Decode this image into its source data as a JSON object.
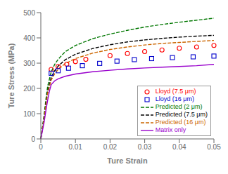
{
  "chart_data": {
    "type": "line",
    "xlabel": "Ture Strain",
    "ylabel": "Ture Stress (MPa)",
    "xlim": [
      0,
      0.05
    ],
    "ylim": [
      0,
      500
    ],
    "xticks": [
      0,
      0.01,
      0.02,
      0.03,
      0.04,
      0.05
    ],
    "yticks": [
      0,
      100,
      200,
      300,
      400,
      500
    ],
    "grid": false,
    "legend": "lower right",
    "series": [
      {
        "name": "Lloyd (7.5 μm)",
        "type": "scatter",
        "marker": "circle",
        "color": "#ff0000",
        "x": [
          0.003,
          0.005,
          0.0075,
          0.01,
          0.013,
          0.02,
          0.025,
          0.03,
          0.035,
          0.04,
          0.045,
          0.05
        ],
        "values": [
          275,
          287,
          296,
          306,
          315,
          330,
          338,
          346,
          352,
          359,
          364,
          370
        ]
      },
      {
        "name": "Lloyd (16 μm)",
        "type": "scatter",
        "marker": "square",
        "color": "#0000cc",
        "x": [
          0.003,
          0.005,
          0.008,
          0.012,
          0.017,
          0.022,
          0.027,
          0.032,
          0.038,
          0.044,
          0.05
        ],
        "values": [
          260,
          270,
          280,
          290,
          299,
          308,
          314,
          318,
          322,
          325,
          328
        ]
      },
      {
        "name": "Predicted (2 μm)",
        "type": "line",
        "line_style": "dashed",
        "color": "#007700",
        "x": [
          0.0,
          0.0005,
          0.001,
          0.0015,
          0.002,
          0.003,
          0.004,
          0.005,
          0.007,
          0.01,
          0.015,
          0.02,
          0.025,
          0.03,
          0.035,
          0.04,
          0.045,
          0.05
        ],
        "values": [
          0,
          50,
          100,
          160,
          210,
          265,
          295,
          315,
          345,
          370,
          397,
          415,
          430,
          443,
          453,
          462,
          470,
          478
        ]
      },
      {
        "name": "Predicted (7.5 μm)",
        "type": "line",
        "line_style": "dashed",
        "color": "#000000",
        "x": [
          0.0,
          0.0005,
          0.001,
          0.0015,
          0.002,
          0.003,
          0.004,
          0.005,
          0.007,
          0.01,
          0.015,
          0.02,
          0.025,
          0.03,
          0.035,
          0.04,
          0.045,
          0.05
        ],
        "values": [
          0,
          45,
          90,
          145,
          190,
          243,
          270,
          288,
          313,
          335,
          358,
          373,
          384,
          392,
          398,
          403,
          407,
          410
        ]
      },
      {
        "name": "Predicted (16 μm)",
        "type": "line",
        "line_style": "dashed",
        "color": "#cc6600",
        "x": [
          0.0,
          0.0005,
          0.001,
          0.0015,
          0.002,
          0.003,
          0.004,
          0.005,
          0.007,
          0.01,
          0.015,
          0.02,
          0.025,
          0.03,
          0.035,
          0.04,
          0.045,
          0.05
        ],
        "values": [
          0,
          42,
          85,
          138,
          182,
          233,
          258,
          275,
          298,
          318,
          340,
          354,
          364,
          372,
          378,
          382,
          386,
          390
        ]
      },
      {
        "name": "Matrix only",
        "type": "line",
        "line_style": "solid",
        "color": "#9900cc",
        "x": [
          0.0,
          0.0005,
          0.001,
          0.0015,
          0.002,
          0.0025,
          0.003,
          0.004,
          0.005,
          0.007,
          0.01,
          0.015,
          0.02,
          0.025,
          0.03,
          0.035,
          0.04,
          0.045,
          0.05
        ],
        "values": [
          0,
          35,
          70,
          115,
          155,
          190,
          215,
          230,
          238,
          248,
          257,
          266,
          272,
          277,
          281,
          284,
          287,
          290,
          295
        ]
      }
    ]
  }
}
